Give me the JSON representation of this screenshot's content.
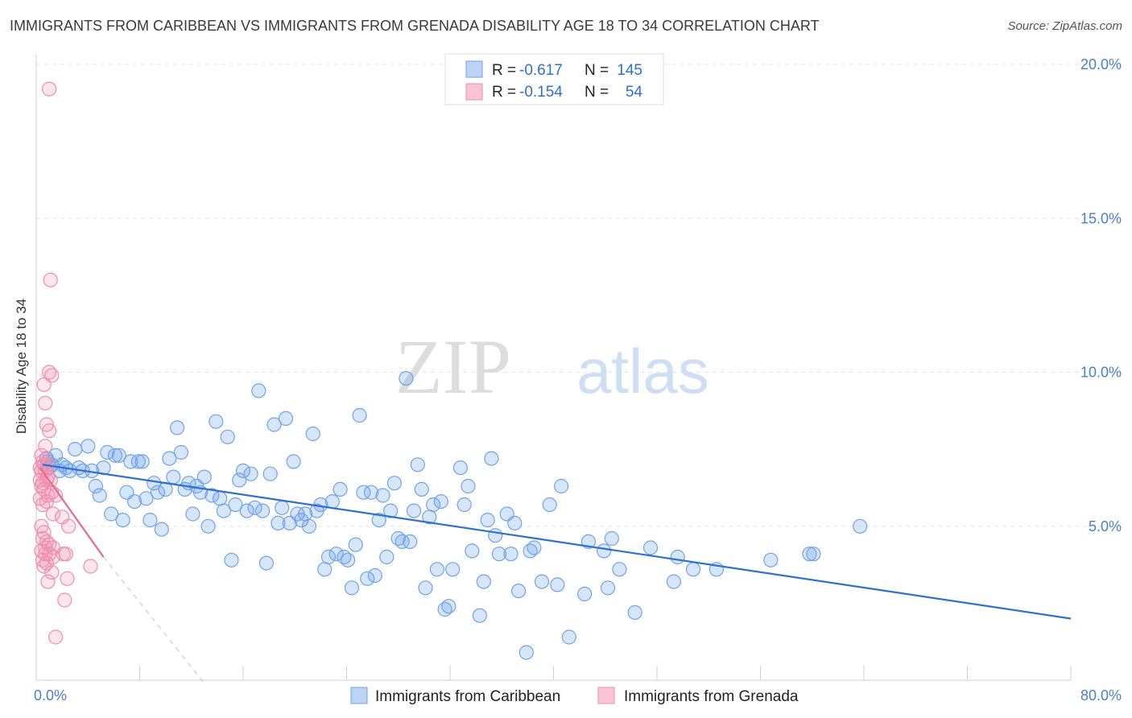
{
  "header": {
    "title": "IMMIGRANTS FROM CARIBBEAN VS IMMIGRANTS FROM GRENADA DISABILITY AGE 18 TO 34 CORRELATION CHART",
    "source": "Source: ZipAtlas.com"
  },
  "watermark": {
    "zip": "ZIP",
    "atlas": "atlas"
  },
  "legend": {
    "r_label": "R =",
    "n_label": "N =",
    "rows": [
      {
        "r": "-0.617",
        "n": "145",
        "color": "#6fa3e8"
      },
      {
        "r": "-0.154",
        "n": "54",
        "color": "#f08cab"
      }
    ]
  },
  "chart_data": {
    "type": "scatter",
    "title": "IMMIGRANTS FROM CARIBBEAN VS IMMIGRANTS FROM GRENADA DISABILITY AGE 18 TO 34 CORRELATION CHART",
    "xlabel": "",
    "ylabel": "Disability Age 18 to 34",
    "xlim": [
      0,
      80
    ],
    "ylim": [
      0,
      20
    ],
    "x_tick_labels": [
      "0.0%",
      "80.0%"
    ],
    "y_ticks": [
      5,
      10,
      15,
      20
    ],
    "y_tick_labels": [
      "5.0%",
      "10.0%",
      "15.0%",
      "20.0%"
    ],
    "grid": true,
    "legend_position": "bottom",
    "series": [
      {
        "name": "Immigrants from Caribbean",
        "color": "#6fa3e8",
        "trend": {
          "x": [
            0.5,
            80
          ],
          "y": [
            7.0,
            2.0
          ]
        },
        "points": [
          [
            0.8,
            7.2
          ],
          [
            0.9,
            7.1
          ],
          [
            1.0,
            6.9
          ],
          [
            1.2,
            7.0
          ],
          [
            1.5,
            7.3
          ],
          [
            1.8,
            6.8
          ],
          [
            2.0,
            7.0
          ],
          [
            2.3,
            6.9
          ],
          [
            2.6,
            6.8
          ],
          [
            3.0,
            7.5
          ],
          [
            3.3,
            6.9
          ],
          [
            3.6,
            6.8
          ],
          [
            4.0,
            7.6
          ],
          [
            4.3,
            6.8
          ],
          [
            4.6,
            6.3
          ],
          [
            4.9,
            6.0
          ],
          [
            5.2,
            6.9
          ],
          [
            5.5,
            7.4
          ],
          [
            5.8,
            5.4
          ],
          [
            6.1,
            7.3
          ],
          [
            6.4,
            7.3
          ],
          [
            6.7,
            5.2
          ],
          [
            7.0,
            6.1
          ],
          [
            7.3,
            7.1
          ],
          [
            7.6,
            5.8
          ],
          [
            7.9,
            7.1
          ],
          [
            8.2,
            7.1
          ],
          [
            8.5,
            5.9
          ],
          [
            8.8,
            5.2
          ],
          [
            9.1,
            6.4
          ],
          [
            9.4,
            6.1
          ],
          [
            9.7,
            4.9
          ],
          [
            10.0,
            6.2
          ],
          [
            10.3,
            7.2
          ],
          [
            10.6,
            6.6
          ],
          [
            10.9,
            8.2
          ],
          [
            11.2,
            7.4
          ],
          [
            11.5,
            6.2
          ],
          [
            11.8,
            6.4
          ],
          [
            12.1,
            5.4
          ],
          [
            12.4,
            6.3
          ],
          [
            12.7,
            6.1
          ],
          [
            13.0,
            6.6
          ],
          [
            13.3,
            5.0
          ],
          [
            13.6,
            6.0
          ],
          [
            13.9,
            8.4
          ],
          [
            14.2,
            5.9
          ],
          [
            14.5,
            5.5
          ],
          [
            14.8,
            7.9
          ],
          [
            15.1,
            3.9
          ],
          [
            15.4,
            5.7
          ],
          [
            15.7,
            6.5
          ],
          [
            16.0,
            6.8
          ],
          [
            16.3,
            5.5
          ],
          [
            16.6,
            6.7
          ],
          [
            16.9,
            5.6
          ],
          [
            17.2,
            9.4
          ],
          [
            17.5,
            5.5
          ],
          [
            17.8,
            3.8
          ],
          [
            18.1,
            6.7
          ],
          [
            18.4,
            8.3
          ],
          [
            18.7,
            5.1
          ],
          [
            19.0,
            5.6
          ],
          [
            19.3,
            8.5
          ],
          [
            19.6,
            5.1
          ],
          [
            19.9,
            7.1
          ],
          [
            20.2,
            5.4
          ],
          [
            20.5,
            5.2
          ],
          [
            20.8,
            5.4
          ],
          [
            21.1,
            5.0
          ],
          [
            21.4,
            8.0
          ],
          [
            21.7,
            5.5
          ],
          [
            22.0,
            5.7
          ],
          [
            22.3,
            3.6
          ],
          [
            22.6,
            4.0
          ],
          [
            22.9,
            5.8
          ],
          [
            23.2,
            4.1
          ],
          [
            23.5,
            6.2
          ],
          [
            23.8,
            4.0
          ],
          [
            24.1,
            3.9
          ],
          [
            24.4,
            3.0
          ],
          [
            24.7,
            4.4
          ],
          [
            25.0,
            8.6
          ],
          [
            25.3,
            6.1
          ],
          [
            25.6,
            3.3
          ],
          [
            25.9,
            6.1
          ],
          [
            26.2,
            3.4
          ],
          [
            26.5,
            5.2
          ],
          [
            26.8,
            6.0
          ],
          [
            27.1,
            4.0
          ],
          [
            27.4,
            5.5
          ],
          [
            27.7,
            6.4
          ],
          [
            28.0,
            4.6
          ],
          [
            28.3,
            4.5
          ],
          [
            28.6,
            9.8
          ],
          [
            28.9,
            4.5
          ],
          [
            29.2,
            5.5
          ],
          [
            29.5,
            7.0
          ],
          [
            29.8,
            6.2
          ],
          [
            30.1,
            3.0
          ],
          [
            30.4,
            5.3
          ],
          [
            30.7,
            5.7
          ],
          [
            31.0,
            3.6
          ],
          [
            31.3,
            5.8
          ],
          [
            31.6,
            2.3
          ],
          [
            31.9,
            2.4
          ],
          [
            32.2,
            3.6
          ],
          [
            32.8,
            6.9
          ],
          [
            33.1,
            5.7
          ],
          [
            33.4,
            6.3
          ],
          [
            33.7,
            4.2
          ],
          [
            34.3,
            2.1
          ],
          [
            34.6,
            3.2
          ],
          [
            34.9,
            5.2
          ],
          [
            35.2,
            7.2
          ],
          [
            35.5,
            4.7
          ],
          [
            35.8,
            4.1
          ],
          [
            36.4,
            5.4
          ],
          [
            36.7,
            4.1
          ],
          [
            37.0,
            5.1
          ],
          [
            37.3,
            2.9
          ],
          [
            37.9,
            0.9
          ],
          [
            38.2,
            4.2
          ],
          [
            38.5,
            4.3
          ],
          [
            39.1,
            3.2
          ],
          [
            39.7,
            5.7
          ],
          [
            40.3,
            3.1
          ],
          [
            40.6,
            6.3
          ],
          [
            41.2,
            1.4
          ],
          [
            42.4,
            2.8
          ],
          [
            42.7,
            4.5
          ],
          [
            43.9,
            4.2
          ],
          [
            44.2,
            3.0
          ],
          [
            44.5,
            4.6
          ],
          [
            45.1,
            3.6
          ],
          [
            46.3,
            2.2
          ],
          [
            47.5,
            4.3
          ],
          [
            49.3,
            3.2
          ],
          [
            49.6,
            4.0
          ],
          [
            50.8,
            3.6
          ],
          [
            52.6,
            3.6
          ],
          [
            56.8,
            3.9
          ],
          [
            59.8,
            4.1
          ],
          [
            60.1,
            4.1
          ],
          [
            63.7,
            5.0
          ]
        ]
      },
      {
        "name": "Immigrants from Grenada",
        "color": "#f08cab",
        "trend": {
          "x": [
            0.3,
            5.2
          ],
          "y": [
            6.9,
            4.0
          ]
        },
        "trend_extension": {
          "x": [
            5.2,
            13.0
          ],
          "y": [
            4.0,
            -0.1
          ]
        },
        "points": [
          [
            1.0,
            19.2
          ],
          [
            1.1,
            13.0
          ],
          [
            1.0,
            10.0
          ],
          [
            1.2,
            9.9
          ],
          [
            0.6,
            9.6
          ],
          [
            0.7,
            9.0
          ],
          [
            0.8,
            8.3
          ],
          [
            1.0,
            8.1
          ],
          [
            0.7,
            7.6
          ],
          [
            0.4,
            7.3
          ],
          [
            0.5,
            7.1
          ],
          [
            0.6,
            7.0
          ],
          [
            0.3,
            6.9
          ],
          [
            0.4,
            6.8
          ],
          [
            0.7,
            6.8
          ],
          [
            0.9,
            6.6
          ],
          [
            0.3,
            6.5
          ],
          [
            0.5,
            6.4
          ],
          [
            0.8,
            6.5
          ],
          [
            1.1,
            6.5
          ],
          [
            0.4,
            6.3
          ],
          [
            0.6,
            6.2
          ],
          [
            0.9,
            6.0
          ],
          [
            1.2,
            6.1
          ],
          [
            0.3,
            5.9
          ],
          [
            0.5,
            5.7
          ],
          [
            0.8,
            5.8
          ],
          [
            1.3,
            5.4
          ],
          [
            2.0,
            5.3
          ],
          [
            0.4,
            5.0
          ],
          [
            0.6,
            4.8
          ],
          [
            2.5,
            5.0
          ],
          [
            0.5,
            4.6
          ],
          [
            0.8,
            4.5
          ],
          [
            1.0,
            4.4
          ],
          [
            1.3,
            4.3
          ],
          [
            0.4,
            4.2
          ],
          [
            0.7,
            4.1
          ],
          [
            1.0,
            4.1
          ],
          [
            1.3,
            4.0
          ],
          [
            2.1,
            4.1
          ],
          [
            2.3,
            4.1
          ],
          [
            0.5,
            3.9
          ],
          [
            0.8,
            3.8
          ],
          [
            0.6,
            3.7
          ],
          [
            1.2,
            3.5
          ],
          [
            4.2,
            3.7
          ],
          [
            2.4,
            3.3
          ],
          [
            0.9,
            3.2
          ],
          [
            2.2,
            2.6
          ],
          [
            1.5,
            1.4
          ],
          [
            0.7,
            4.3
          ],
          [
            1.5,
            6.0
          ],
          [
            0.9,
            7.0
          ]
        ]
      }
    ]
  }
}
